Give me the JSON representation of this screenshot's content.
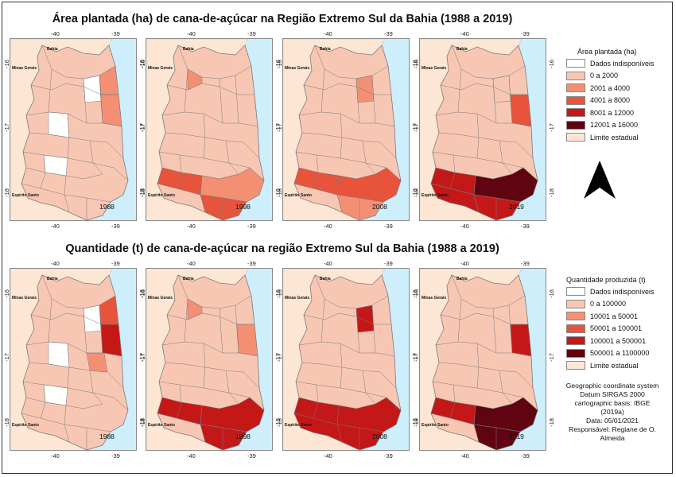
{
  "titles": {
    "area": "Área plantada (ha) de cana-de-açúcar na Região Extremo Sul da Bahia (1988 a 2019)",
    "quantity": "Quantidade (t) de cana-de-açúcar na região Extremo Sul da Bahia (1988 a 2019)"
  },
  "axis_ticks": {
    "lon_west": "-40",
    "lon_east": "-39",
    "lat_north": "-16",
    "lat_mid": "-17",
    "lat_south": "-18"
  },
  "map_labels": {
    "state_top": "Bahia",
    "state_west": "Minas Gerais",
    "state_south": "Espírito Santo"
  },
  "years": [
    "1988",
    "1998",
    "2008",
    "2019"
  ],
  "legend_area": {
    "title": "Área plantada (ha)",
    "items": [
      {
        "label": "Dados indisponíveis",
        "color": "#ffffff"
      },
      {
        "label": "0 a 2000",
        "color": "#f8c7b4"
      },
      {
        "label": "2001 a 4000",
        "color": "#f39074"
      },
      {
        "label": "4001 a 8000",
        "color": "#e8533c"
      },
      {
        "label": "8001 a 12000",
        "color": "#c41818"
      },
      {
        "label": "12001 a 16000",
        "color": "#5f0410"
      },
      {
        "label": "Limite estadual",
        "color": "#fde7d4"
      }
    ]
  },
  "legend_quantity": {
    "title": "Quantidade produzida (t)",
    "items": [
      {
        "label": "Dados indisponíveis",
        "color": "#ffffff"
      },
      {
        "label": "0 a 100000",
        "color": "#f8c7b4"
      },
      {
        "label": "10001 a 50001",
        "color": "#f39074"
      },
      {
        "label": "50001 a 100001",
        "color": "#e8533c"
      },
      {
        "label": "100001 a 500001",
        "color": "#c41818"
      },
      {
        "label": "500001 a 1100000",
        "color": "#5f0410"
      },
      {
        "label": "Limite estadual",
        "color": "#fde7d4"
      }
    ]
  },
  "credits": {
    "line1": "Geographic coordinate system",
    "line2": "Datum SIRGAS 2000",
    "line3": "cartographic basis: IBGE",
    "line4": "(2019a)",
    "line5": "Data: 05/01/2021",
    "line6": "Responsável: Regiane de O.",
    "line7": "Almeida"
  },
  "north_arrow_icon": "north-arrow-icon",
  "colors": {
    "sea": "#cdeefa",
    "neighbor": "#fde7d4",
    "border": "#7a7a7a"
  }
}
